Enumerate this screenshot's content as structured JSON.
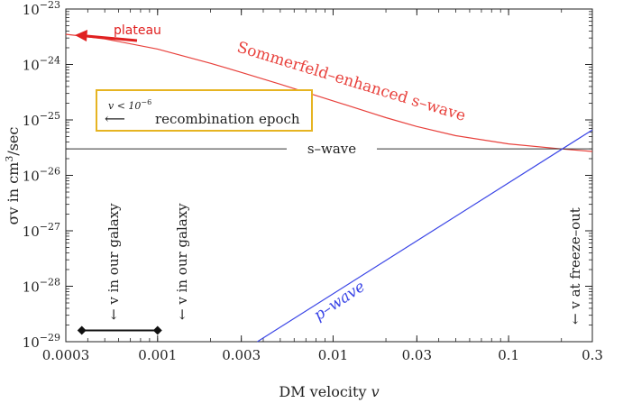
{
  "chart_data": {
    "type": "line",
    "xlabel": "DM velocity",
    "xlabel_var": "v",
    "ylabel_main": "σv in cm",
    "ylabel_exp": "3",
    "ylabel_unit": "/sec",
    "x_scale": "log",
    "y_scale": "log",
    "xlim": [
      0.0003,
      0.3
    ],
    "ylim": [
      1e-29,
      1e-23
    ],
    "x_ticks": [
      {
        "value": 0.0003,
        "label": "0.0003"
      },
      {
        "value": 0.001,
        "label": "0.001"
      },
      {
        "value": 0.003,
        "label": "0.003"
      },
      {
        "value": 0.01,
        "label": "0.01"
      },
      {
        "value": 0.03,
        "label": "0.03"
      },
      {
        "value": 0.1,
        "label": "0.1"
      },
      {
        "value": 0.3,
        "label": "0.3"
      }
    ],
    "y_ticks": [
      {
        "value": 1e-23,
        "base": "10",
        "exp": "−23"
      },
      {
        "value": 1e-24,
        "base": "10",
        "exp": "−24"
      },
      {
        "value": 1e-25,
        "base": "10",
        "exp": "−25"
      },
      {
        "value": 1e-26,
        "base": "10",
        "exp": "−26"
      },
      {
        "value": 1e-27,
        "base": "10",
        "exp": "−27"
      },
      {
        "value": 1e-28,
        "base": "10",
        "exp": "−28"
      },
      {
        "value": 1e-29,
        "base": "10",
        "exp": "−29"
      }
    ],
    "series": [
      {
        "name": "Sommerfeld–enhanced s–wave",
        "color": "#e8413c",
        "x": [
          0.0003,
          0.0005,
          0.001,
          0.002,
          0.003,
          0.005,
          0.01,
          0.02,
          0.03,
          0.05,
          0.1,
          0.2,
          0.3
        ],
        "y": [
          3.5e-24,
          2.9e-24,
          1.9e-24,
          1.05e-24,
          7.2e-25,
          4.4e-25,
          2.2e-25,
          1.1e-25,
          7.6e-26,
          5.2e-26,
          3.7e-26,
          3e-26,
          2.7e-26
        ]
      },
      {
        "name": "s–wave",
        "color": "#333333",
        "x": [
          0.0003,
          0.3
        ],
        "y": [
          3e-26,
          3e-26
        ]
      },
      {
        "name": "p–wave",
        "color": "#3a45e6",
        "x": [
          0.0037,
          0.3
        ],
        "y": [
          1e-29,
          6.6e-26
        ]
      }
    ],
    "galaxy_range": {
      "x": [
        0.00037,
        0.001
      ],
      "y": 1.6e-29
    },
    "annotations": {
      "plateau": "plateau",
      "sommerfeld_label": "Sommerfeld–enhanced s–wave",
      "swave_label": "s–wave",
      "pwave_label": "p–wave",
      "galaxy_label_1": "← v in our galaxy",
      "galaxy_label_2": "← v in our galaxy",
      "freezeout_label": "← v at freeze–out",
      "recomb_condition": "v < 10",
      "recomb_exp": "−6",
      "recomb_arrow": "⟵",
      "recomb_text": "recombination epoch"
    },
    "colors": {
      "sommerfeld": "#e8413c",
      "plateau_arrow": "#e02020",
      "pwave": "#3a45e6",
      "swave": "#333333",
      "recomb_box": "#e6b422"
    }
  }
}
